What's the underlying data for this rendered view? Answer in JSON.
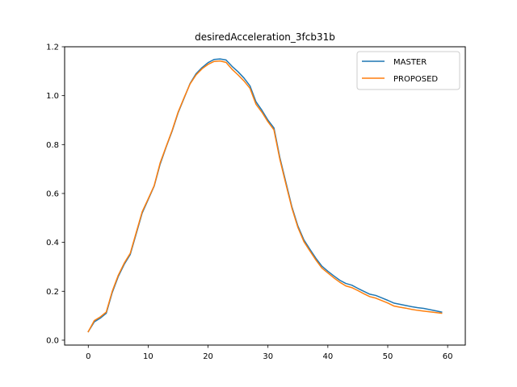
{
  "chart_data": {
    "type": "line",
    "title": "desiredAcceleration_3fcb31b",
    "xlabel": "",
    "ylabel": "",
    "xlim": [
      -3.95,
      62.95
    ],
    "ylim": [
      -0.02,
      1.2
    ],
    "x_ticks": [
      0,
      10,
      20,
      30,
      40,
      50,
      60
    ],
    "y_ticks": [
      0.0,
      0.2,
      0.4,
      0.6,
      0.8,
      1.0,
      1.2
    ],
    "x_tick_labels": [
      "0",
      "10",
      "20",
      "30",
      "40",
      "50",
      "60"
    ],
    "y_tick_labels": [
      "0.0",
      "0.2",
      "0.4",
      "0.6",
      "0.8",
      "1.0",
      "1.2"
    ],
    "grid": false,
    "legend_position": "top-right",
    "x": [
      0,
      1,
      2,
      3,
      4,
      5,
      6,
      7,
      8,
      9,
      10,
      11,
      12,
      13,
      14,
      15,
      16,
      17,
      18,
      19,
      20,
      21,
      22,
      23,
      24,
      25,
      26,
      27,
      28,
      29,
      30,
      31,
      32,
      33,
      34,
      35,
      36,
      37,
      38,
      39,
      40,
      41,
      42,
      43,
      44,
      45,
      46,
      47,
      48,
      49,
      50,
      51,
      52,
      53,
      54,
      55,
      56,
      57,
      58,
      59
    ],
    "series": [
      {
        "name": "MASTER",
        "color": "#1f77b4",
        "values": [
          0.035,
          0.075,
          0.09,
          0.11,
          0.195,
          0.26,
          0.31,
          0.35,
          0.435,
          0.52,
          0.575,
          0.63,
          0.72,
          0.79,
          0.855,
          0.93,
          0.99,
          1.05,
          1.09,
          1.115,
          1.135,
          1.148,
          1.15,
          1.146,
          1.12,
          1.098,
          1.072,
          1.04,
          0.975,
          0.94,
          0.9,
          0.868,
          0.745,
          0.645,
          0.545,
          0.467,
          0.41,
          0.372,
          0.335,
          0.303,
          0.282,
          0.263,
          0.245,
          0.232,
          0.225,
          0.212,
          0.2,
          0.188,
          0.183,
          0.173,
          0.163,
          0.152,
          0.147,
          0.142,
          0.137,
          0.133,
          0.13,
          0.125,
          0.12,
          0.115
        ]
      },
      {
        "name": "PROPOSED",
        "color": "#ff7f0e",
        "values": [
          0.035,
          0.08,
          0.095,
          0.115,
          0.2,
          0.265,
          0.315,
          0.355,
          0.44,
          0.525,
          0.578,
          0.632,
          0.725,
          0.792,
          0.858,
          0.933,
          0.992,
          1.048,
          1.085,
          1.11,
          1.128,
          1.14,
          1.142,
          1.136,
          1.108,
          1.085,
          1.06,
          1.03,
          0.965,
          0.932,
          0.893,
          0.86,
          0.738,
          0.638,
          0.54,
          0.461,
          0.403,
          0.365,
          0.328,
          0.295,
          0.275,
          0.255,
          0.237,
          0.222,
          0.215,
          0.203,
          0.19,
          0.178,
          0.172,
          0.162,
          0.152,
          0.14,
          0.135,
          0.131,
          0.126,
          0.122,
          0.119,
          0.116,
          0.113,
          0.11
        ]
      }
    ]
  }
}
